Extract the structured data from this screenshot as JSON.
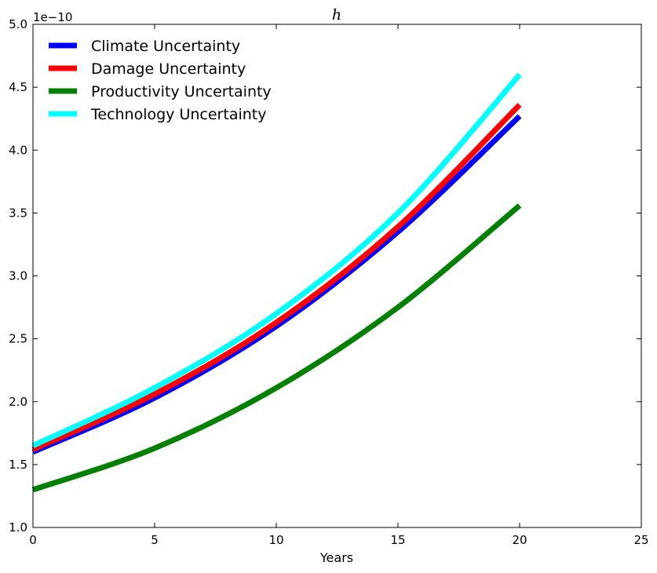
{
  "chart_data": {
    "type": "line",
    "title": "h",
    "xlabel": "Years",
    "ylabel": "",
    "y_offset_label": "1e−10",
    "xlim": [
      0,
      25
    ],
    "ylim": [
      1.0,
      5.0
    ],
    "xticks": [
      "0",
      "5",
      "10",
      "15",
      "20",
      "25"
    ],
    "yticks": [
      "1.0",
      "1.5",
      "2.0",
      "2.5",
      "3.0",
      "3.5",
      "4.0",
      "4.5",
      "5.0"
    ],
    "grid": false,
    "legend_position": "upper left",
    "x": [
      0,
      5,
      10,
      15,
      20
    ],
    "series": [
      {
        "name": "Climate Uncertainty",
        "color": "#0000ff",
        "values": [
          1.6,
          2.03,
          2.6,
          3.35,
          4.27
        ]
      },
      {
        "name": "Damage Uncertainty",
        "color": "#ff0000",
        "values": [
          1.62,
          2.06,
          2.63,
          3.39,
          4.36
        ]
      },
      {
        "name": "Productivity Uncertainty",
        "color": "#008000",
        "values": [
          1.3,
          1.63,
          2.11,
          2.75,
          3.56
        ]
      },
      {
        "name": "Technology Uncertainty",
        "color": "#00ffff",
        "values": [
          1.65,
          2.11,
          2.7,
          3.5,
          4.6
        ]
      }
    ]
  }
}
